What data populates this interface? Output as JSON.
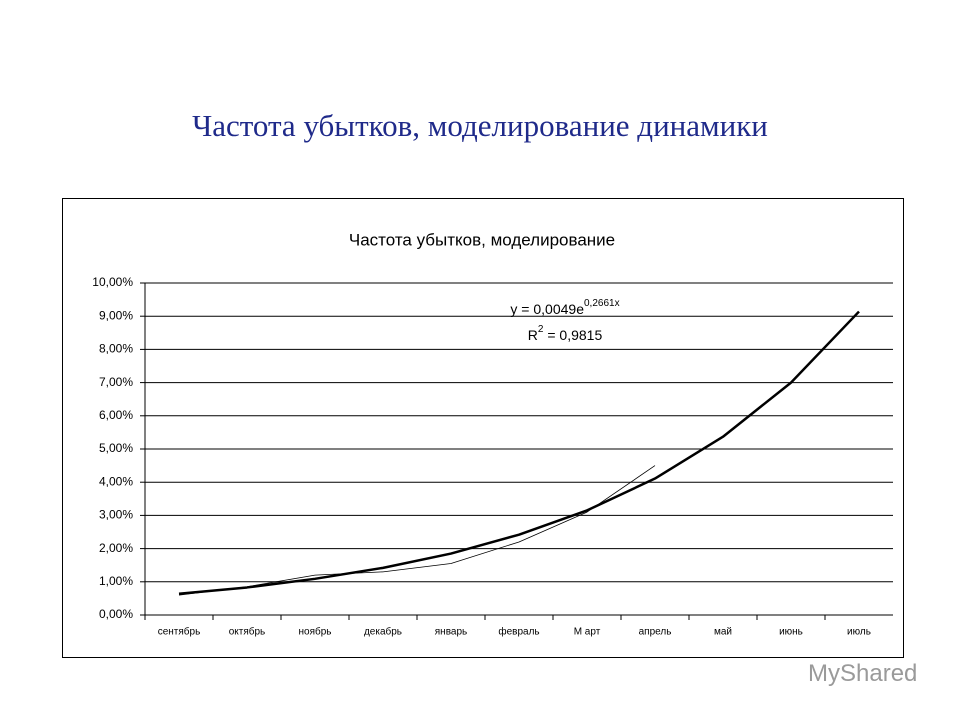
{
  "slide_title": "Частота убытков, моделирование динамики",
  "watermark": "MyShared",
  "chart_data": {
    "type": "line",
    "title": "Частота убытков, моделирование",
    "categories": [
      "сентябрь",
      "октябрь",
      "ноябрь",
      "декабрь",
      "январь",
      "февраль",
      "М арт",
      "апрель",
      "май",
      "июнь",
      "июль"
    ],
    "series": [
      {
        "color": "#000000",
        "width": 2.5,
        "values": [
          0.64,
          0.83,
          1.09,
          1.42,
          1.85,
          2.42,
          3.15,
          4.11,
          5.37,
          7.0,
          9.14
        ]
      },
      {
        "color": "#000000",
        "width": 0.8,
        "values": [
          0.6,
          0.85,
          1.2,
          1.3,
          1.55,
          2.2,
          3.1,
          4.5,
          null,
          null,
          null
        ]
      }
    ],
    "ylim": [
      0,
      10
    ],
    "yticks": [
      {
        "value": 0,
        "label": "0,00%"
      },
      {
        "value": 1,
        "label": "1,00%"
      },
      {
        "value": 2,
        "label": "2,00%"
      },
      {
        "value": 3,
        "label": "3,00%"
      },
      {
        "value": 4,
        "label": "4,00%"
      },
      {
        "value": 5,
        "label": "5,00%"
      },
      {
        "value": 6,
        "label": "6,00%"
      },
      {
        "value": 7,
        "label": "7,00%"
      },
      {
        "value": 8,
        "label": "8,00%"
      },
      {
        "value": 9,
        "label": "9,00%"
      },
      {
        "value": 10,
        "label": "10,00%"
      }
    ],
    "grid": true,
    "equation": {
      "base": "y = 0,0049e",
      "exponent": "0,2661x"
    },
    "r_squared": {
      "base": "R",
      "exponent": "2",
      "rest": " = 0,9815"
    }
  }
}
